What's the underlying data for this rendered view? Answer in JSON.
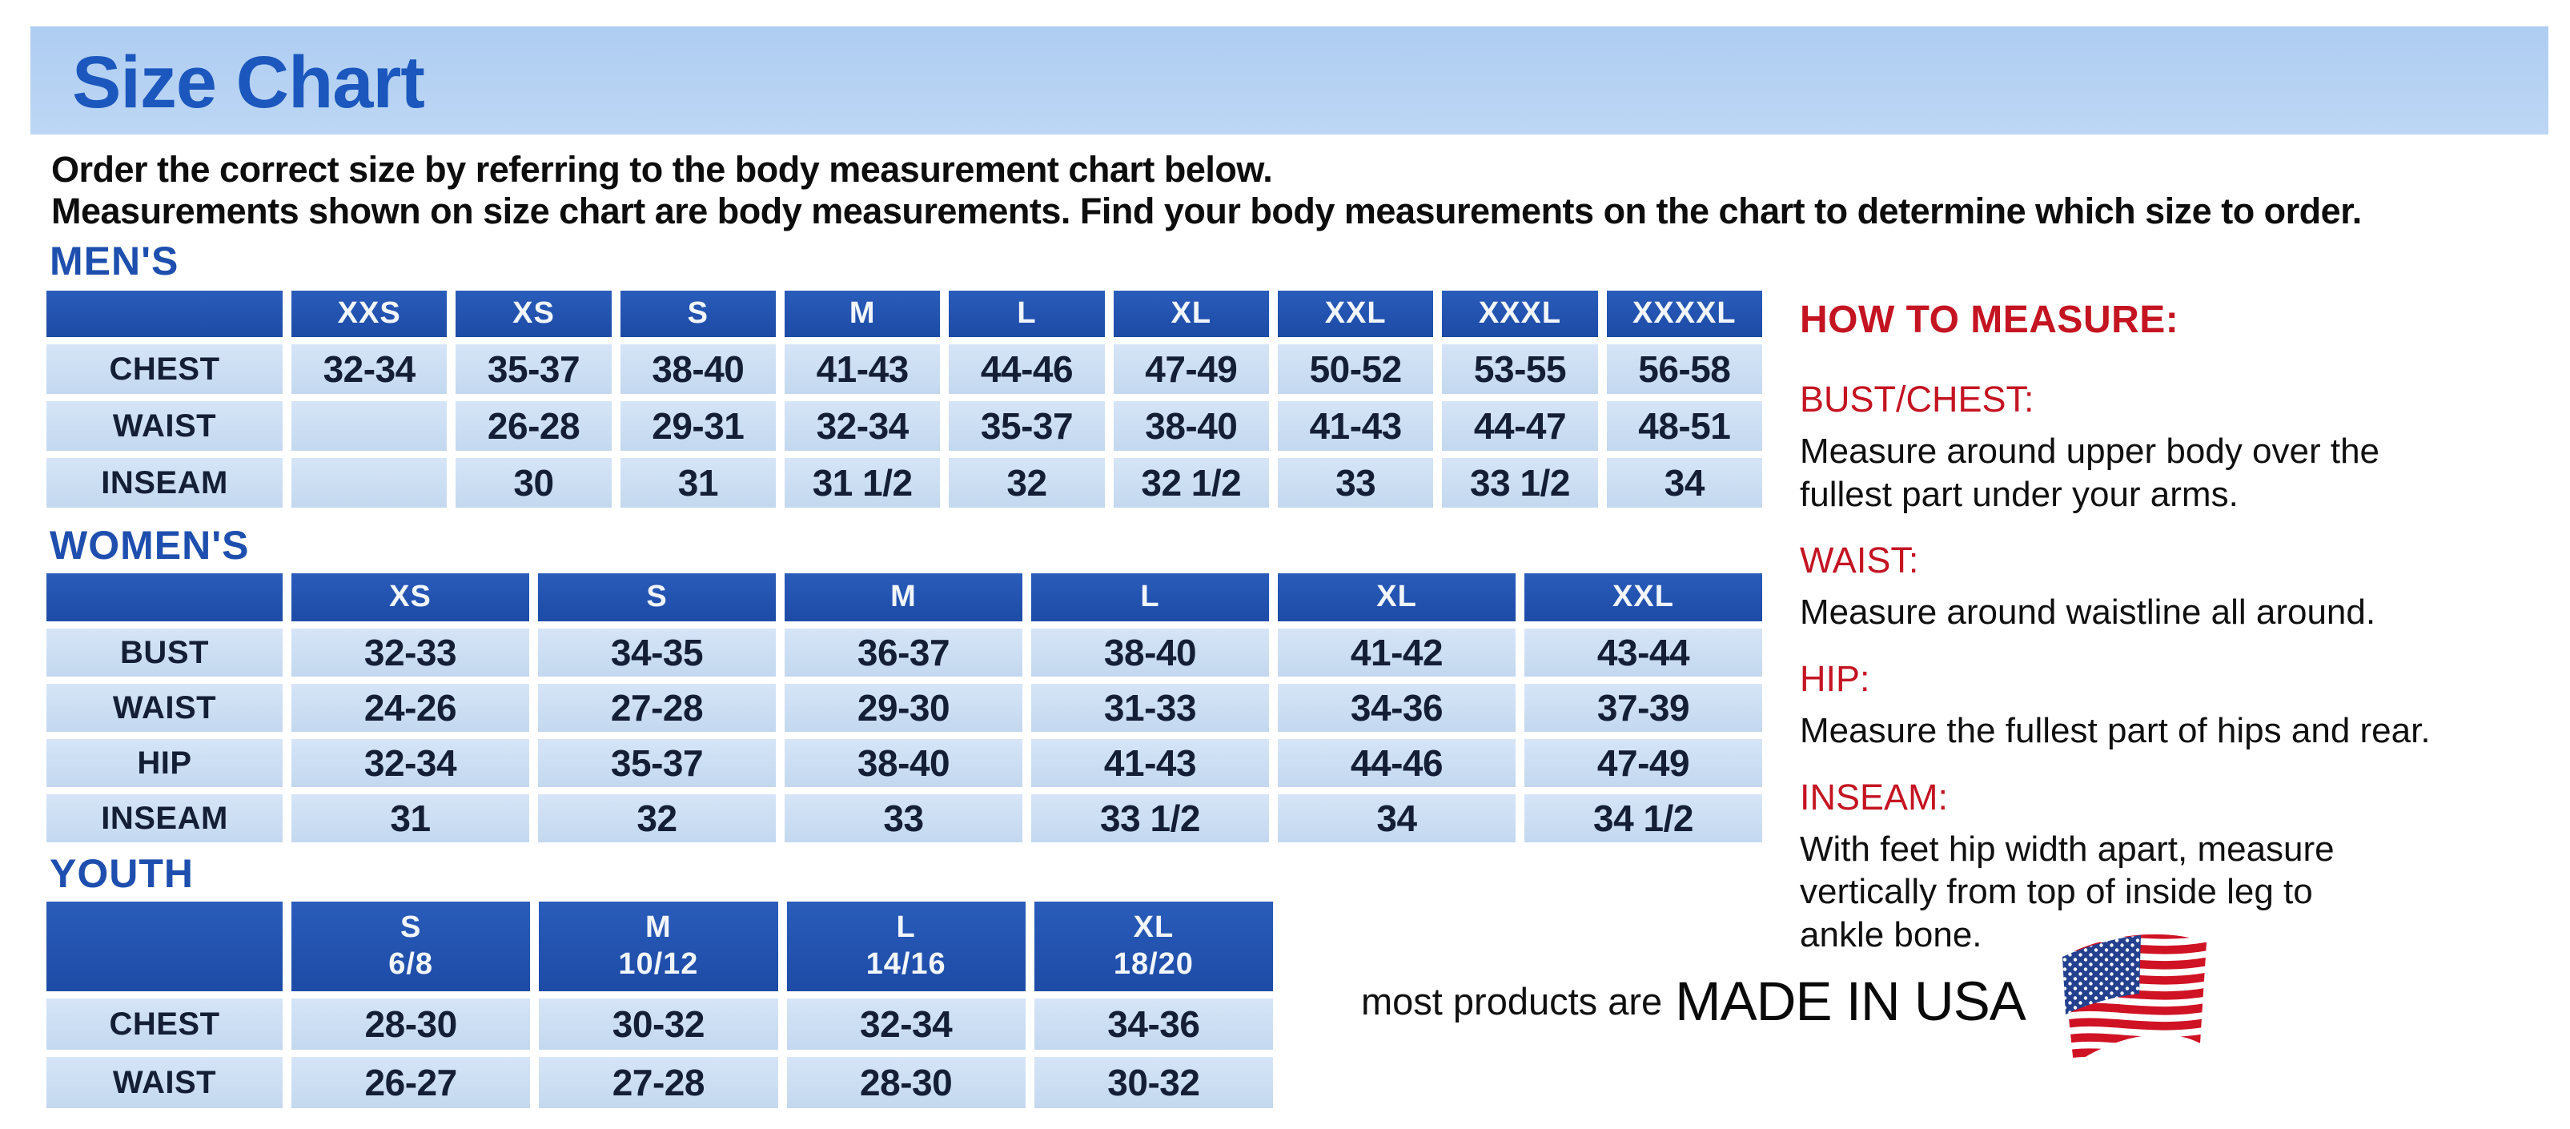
{
  "page": {
    "title": "Size Chart",
    "intro_line1": "Order the correct size by referring to the body measurement chart below.",
    "intro_line2": "Measurements shown on size chart are body measurements.  Find your body measurements on the chart to determine which size to order."
  },
  "colors": {
    "banner_blue": "#b7d2f1",
    "title_blue": "#1b57bd",
    "section_heading_blue": "#1e4fae",
    "table_header_blue": "#2153b0",
    "table_cell_blue": "#cddff3",
    "heading_red": "#c41422",
    "flag_navy": "#24418f",
    "flag_red": "#d01225"
  },
  "tables": [
    {
      "id": "mens",
      "heading": "MEN'S",
      "columns": [
        "",
        "XXS",
        "XS",
        "S",
        "M",
        "L",
        "XL",
        "XXL",
        "XXXL",
        "XXXXL"
      ],
      "rows": [
        [
          "CHEST",
          "32-34",
          "35-37",
          "38-40",
          "41-43",
          "44-46",
          "47-49",
          "50-52",
          "53-55",
          "56-58"
        ],
        [
          "WAIST",
          "",
          "26-28",
          "29-31",
          "32-34",
          "35-37",
          "38-40",
          "41-43",
          "44-47",
          "48-51"
        ],
        [
          "INSEAM",
          "",
          "30",
          "31",
          "31 1/2",
          "32",
          "32 1/2",
          "33",
          "33 1/2",
          "34"
        ]
      ]
    },
    {
      "id": "womens",
      "heading": "WOMEN'S",
      "columns": [
        "",
        "XS",
        "S",
        "M",
        "L",
        "XL",
        "XXL"
      ],
      "rows": [
        [
          "BUST",
          "32-33",
          "34-35",
          "36-37",
          "38-40",
          "41-42",
          "43-44"
        ],
        [
          "WAIST",
          "24-26",
          "27-28",
          "29-30",
          "31-33",
          "34-36",
          "37-39"
        ],
        [
          "HIP",
          "32-34",
          "35-37",
          "38-40",
          "41-43",
          "44-46",
          "47-49"
        ],
        [
          "INSEAM",
          "31",
          "32",
          "33",
          "33 1/2",
          "34",
          "34 1/2"
        ]
      ]
    },
    {
      "id": "youth",
      "heading": "YOUTH",
      "columns": [
        "",
        "S\n6/8",
        "M\n10/12",
        "L\n14/16",
        "XL\n18/20"
      ],
      "rows": [
        [
          "CHEST",
          "28-30",
          "30-32",
          "32-34",
          "34-36"
        ],
        [
          "WAIST",
          "26-27",
          "27-28",
          "28-30",
          "30-32"
        ]
      ]
    }
  ],
  "how_to_measure": {
    "heading": "HOW TO MEASURE:",
    "items": [
      {
        "label": "BUST/CHEST:",
        "text": "Measure around upper body over the\nfullest part under your arms."
      },
      {
        "label": "WAIST:",
        "text": "Measure around waistline all around."
      },
      {
        "label": "HIP:",
        "text": "Measure the fullest part of hips and rear."
      },
      {
        "label": "INSEAM:",
        "text": "With feet hip width apart, measure\nvertically from top of inside leg to\nankle bone."
      }
    ]
  },
  "footer": {
    "made_in_prefix": "most products are",
    "made_in_main": "MADE IN USA",
    "flag_icon": "usa-flag-icon"
  }
}
